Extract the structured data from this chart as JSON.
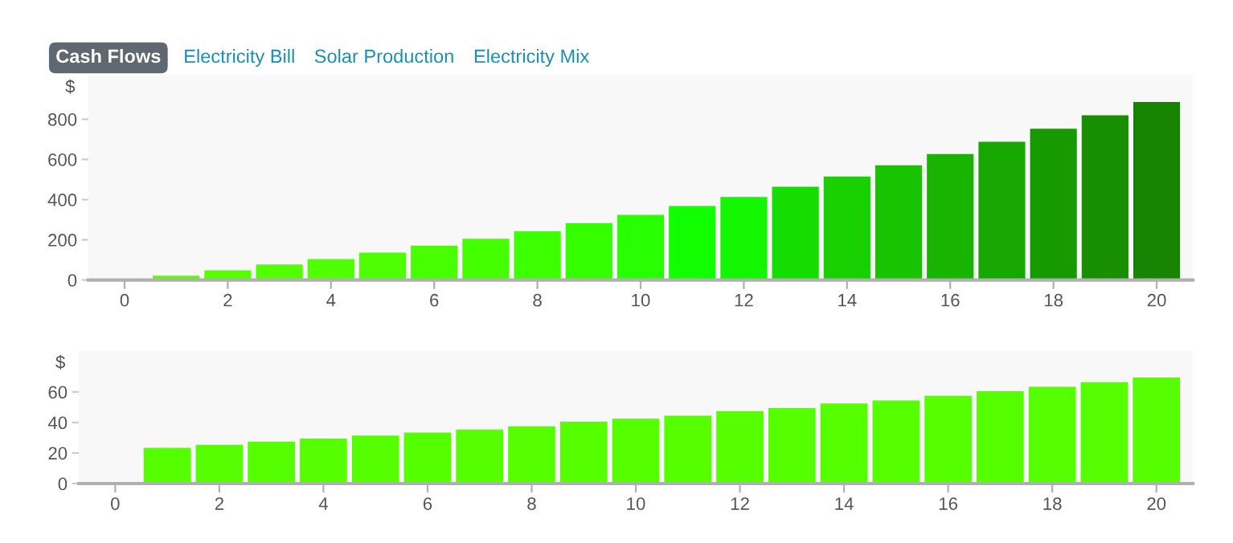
{
  "chart_data": [
    {
      "type": "bar",
      "ylabel": "$",
      "annotations": [
        "Cash Flows",
        "Electricity Bill",
        "Solar Production",
        "Electricity Mix"
      ],
      "x": [
        0,
        1,
        2,
        3,
        4,
        5,
        6,
        7,
        8,
        9,
        10,
        11,
        12,
        13,
        14,
        15,
        16,
        17,
        18,
        19,
        20
      ],
      "values": [
        0,
        18,
        45,
        74,
        101,
        133,
        168,
        202,
        240,
        280,
        321,
        365,
        410,
        461,
        512,
        568,
        624,
        685,
        749,
        816,
        882
      ],
      "colors": [
        "#55ff00",
        "#55ff00",
        "#55ff00",
        "#52ff00",
        "#50ff00",
        "#4dff00",
        "#48ff00",
        "#44ff00",
        "#3cff00",
        "#33ff00",
        "#28ff00",
        "#11ff00",
        "#14f500",
        "#16dd00",
        "#18d000",
        "#18c400",
        "#17b400",
        "#16a800",
        "#179a00",
        "#178f00",
        "#168400"
      ],
      "xlim": [
        -0.7,
        20.7
      ],
      "ylim": [
        0,
        1020
      ],
      "xticks": [
        0,
        2,
        4,
        6,
        8,
        10,
        12,
        14,
        16,
        18,
        20
      ],
      "yticks": [
        0,
        200,
        400,
        600,
        800
      ],
      "grid": false,
      "legend": false
    },
    {
      "type": "bar",
      "ylabel": "$",
      "x": [
        0,
        1,
        2,
        3,
        4,
        5,
        6,
        7,
        8,
        9,
        10,
        11,
        12,
        13,
        14,
        15,
        16,
        17,
        18,
        19,
        20
      ],
      "values": [
        0,
        23,
        25,
        27,
        29,
        31,
        33,
        35,
        37,
        40,
        42,
        44,
        47,
        49,
        52,
        54,
        57,
        60,
        63,
        66,
        69
      ],
      "colors": [
        "#55ff00",
        "#55ff00",
        "#55ff00",
        "#55ff00",
        "#55ff00",
        "#55ff00",
        "#55ff00",
        "#55ff00",
        "#55ff00",
        "#55ff00",
        "#55ff00",
        "#55ff00",
        "#55ff00",
        "#55ff00",
        "#55ff00",
        "#55ff00",
        "#55ff00",
        "#55ff00",
        "#55ff00",
        "#55ff00",
        "#55ff00"
      ],
      "xlim": [
        -0.7,
        20.7
      ],
      "ylim": [
        0,
        87
      ],
      "xticks": [
        0,
        2,
        4,
        6,
        8,
        10,
        12,
        14,
        16,
        18,
        20
      ],
      "yticks": [
        0,
        20,
        40,
        60
      ],
      "grid": false,
      "legend": false
    }
  ]
}
